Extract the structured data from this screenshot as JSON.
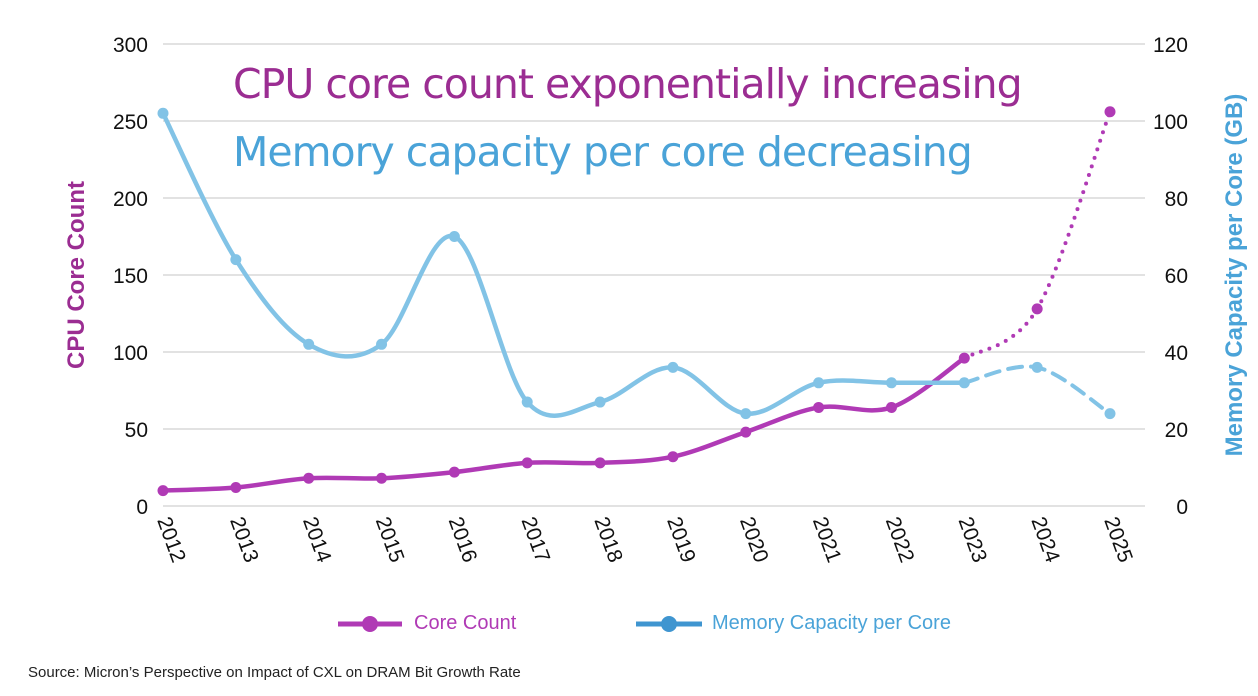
{
  "chart_data": {
    "type": "line",
    "categories": [
      "2012",
      "2013",
      "2014",
      "2015",
      "2016",
      "2017",
      "2018",
      "2019",
      "2020",
      "2021",
      "2022",
      "2023",
      "2024",
      "2025"
    ],
    "series": [
      {
        "name": "Core Count",
        "axis": "left",
        "color": "#b03ab5",
        "values": [
          10,
          12,
          18,
          18,
          22,
          28,
          28,
          32,
          48,
          64,
          64,
          96,
          128,
          256
        ],
        "projected_from": "2023",
        "projected_style": "dotted"
      },
      {
        "name": "Memory Capacity per Core",
        "axis": "right",
        "color": "#82c3e6",
        "values": [
          102,
          64,
          42,
          42,
          70,
          27,
          27,
          36,
          24,
          32,
          32,
          32,
          36,
          24
        ],
        "projected_from": "2023",
        "projected_style": "dashed"
      }
    ],
    "ylabel": "CPU Core Count",
    "ylabel_right": "Memory Capacity per Core (GB)",
    "ylim": [
      0,
      300
    ],
    "ylim_right": [
      0,
      120
    ],
    "yticks": [
      "0",
      "50",
      "100",
      "150",
      "200",
      "250",
      "300"
    ],
    "yticks_right": [
      "0",
      "20",
      "40",
      "60",
      "80",
      "100",
      "120"
    ],
    "grid": true,
    "legend": "bottom",
    "annotations": [
      "CPU core count exponentially increasing",
      "Memory capacity per core decreasing"
    ],
    "annotation_colors": [
      "#9b2d92",
      "#4aa3d8"
    ],
    "axis_title_colors": [
      "#9b2d92",
      "#4aa3d8"
    ]
  },
  "source": "Source: Micron’s Perspective on Impact of CXL on DRAM Bit Growth Rate"
}
